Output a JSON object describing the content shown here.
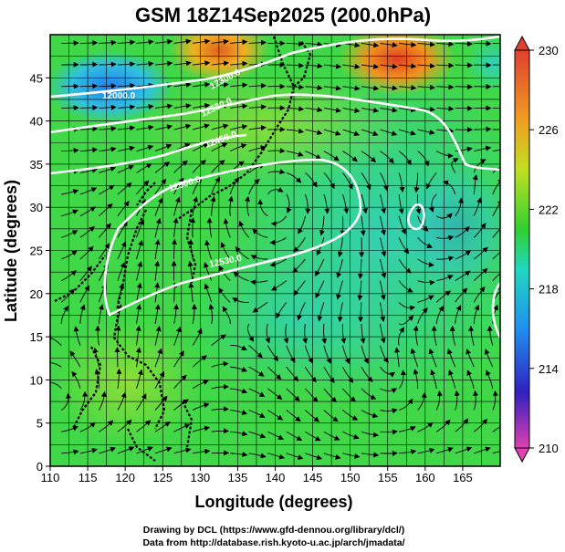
{
  "title": "GSM 18Z14Sep2025 (200.0hPa)",
  "xlabel": "Longitude (degrees)",
  "ylabel": "Latitude  (degrees)",
  "credits": [
    "Drawing by DCL (https://www.gfd-dennou.org/library/dcl/)",
    "Data from http://database.rish.kyoto-u.ac.jp/arch/jmadata/"
  ],
  "chart_data": {
    "type": "heatmap",
    "variable": "200hPa temperature (K) with streamlines and geopotential height contours",
    "xlim": [
      110,
      170
    ],
    "ylim": [
      0,
      50
    ],
    "x_ticks": [
      110,
      115,
      120,
      125,
      130,
      135,
      140,
      145,
      150,
      155,
      160,
      165
    ],
    "y_ticks": [
      0,
      5,
      10,
      15,
      20,
      25,
      30,
      35,
      40,
      45
    ],
    "colorbar": {
      "ticks": [
        210,
        214,
        218,
        222,
        226,
        230
      ],
      "range": [
        210,
        230
      ],
      "colors": [
        "#e040b0",
        "#3020c0",
        "#2090f0",
        "#20d8c0",
        "#30d030",
        "#c0e020",
        "#f0a020",
        "#e04030"
      ]
    },
    "contour_labels": [
      "12000.0",
      "12300.0",
      "12450.0",
      "12500.0",
      "12530.0",
      "12530.0"
    ],
    "features": {
      "warm_patch_nw": {
        "lon": 128,
        "lat": 48
      },
      "warm_patch_ne": {
        "lon": 154,
        "lat": 47
      },
      "cold_patch_nw": {
        "lon": 117,
        "lat": 45
      },
      "anticyclone_centre": {
        "lon": 140,
        "lat": 31
      },
      "cyclone_centre": {
        "lon": 162,
        "lat": 30
      }
    }
  }
}
